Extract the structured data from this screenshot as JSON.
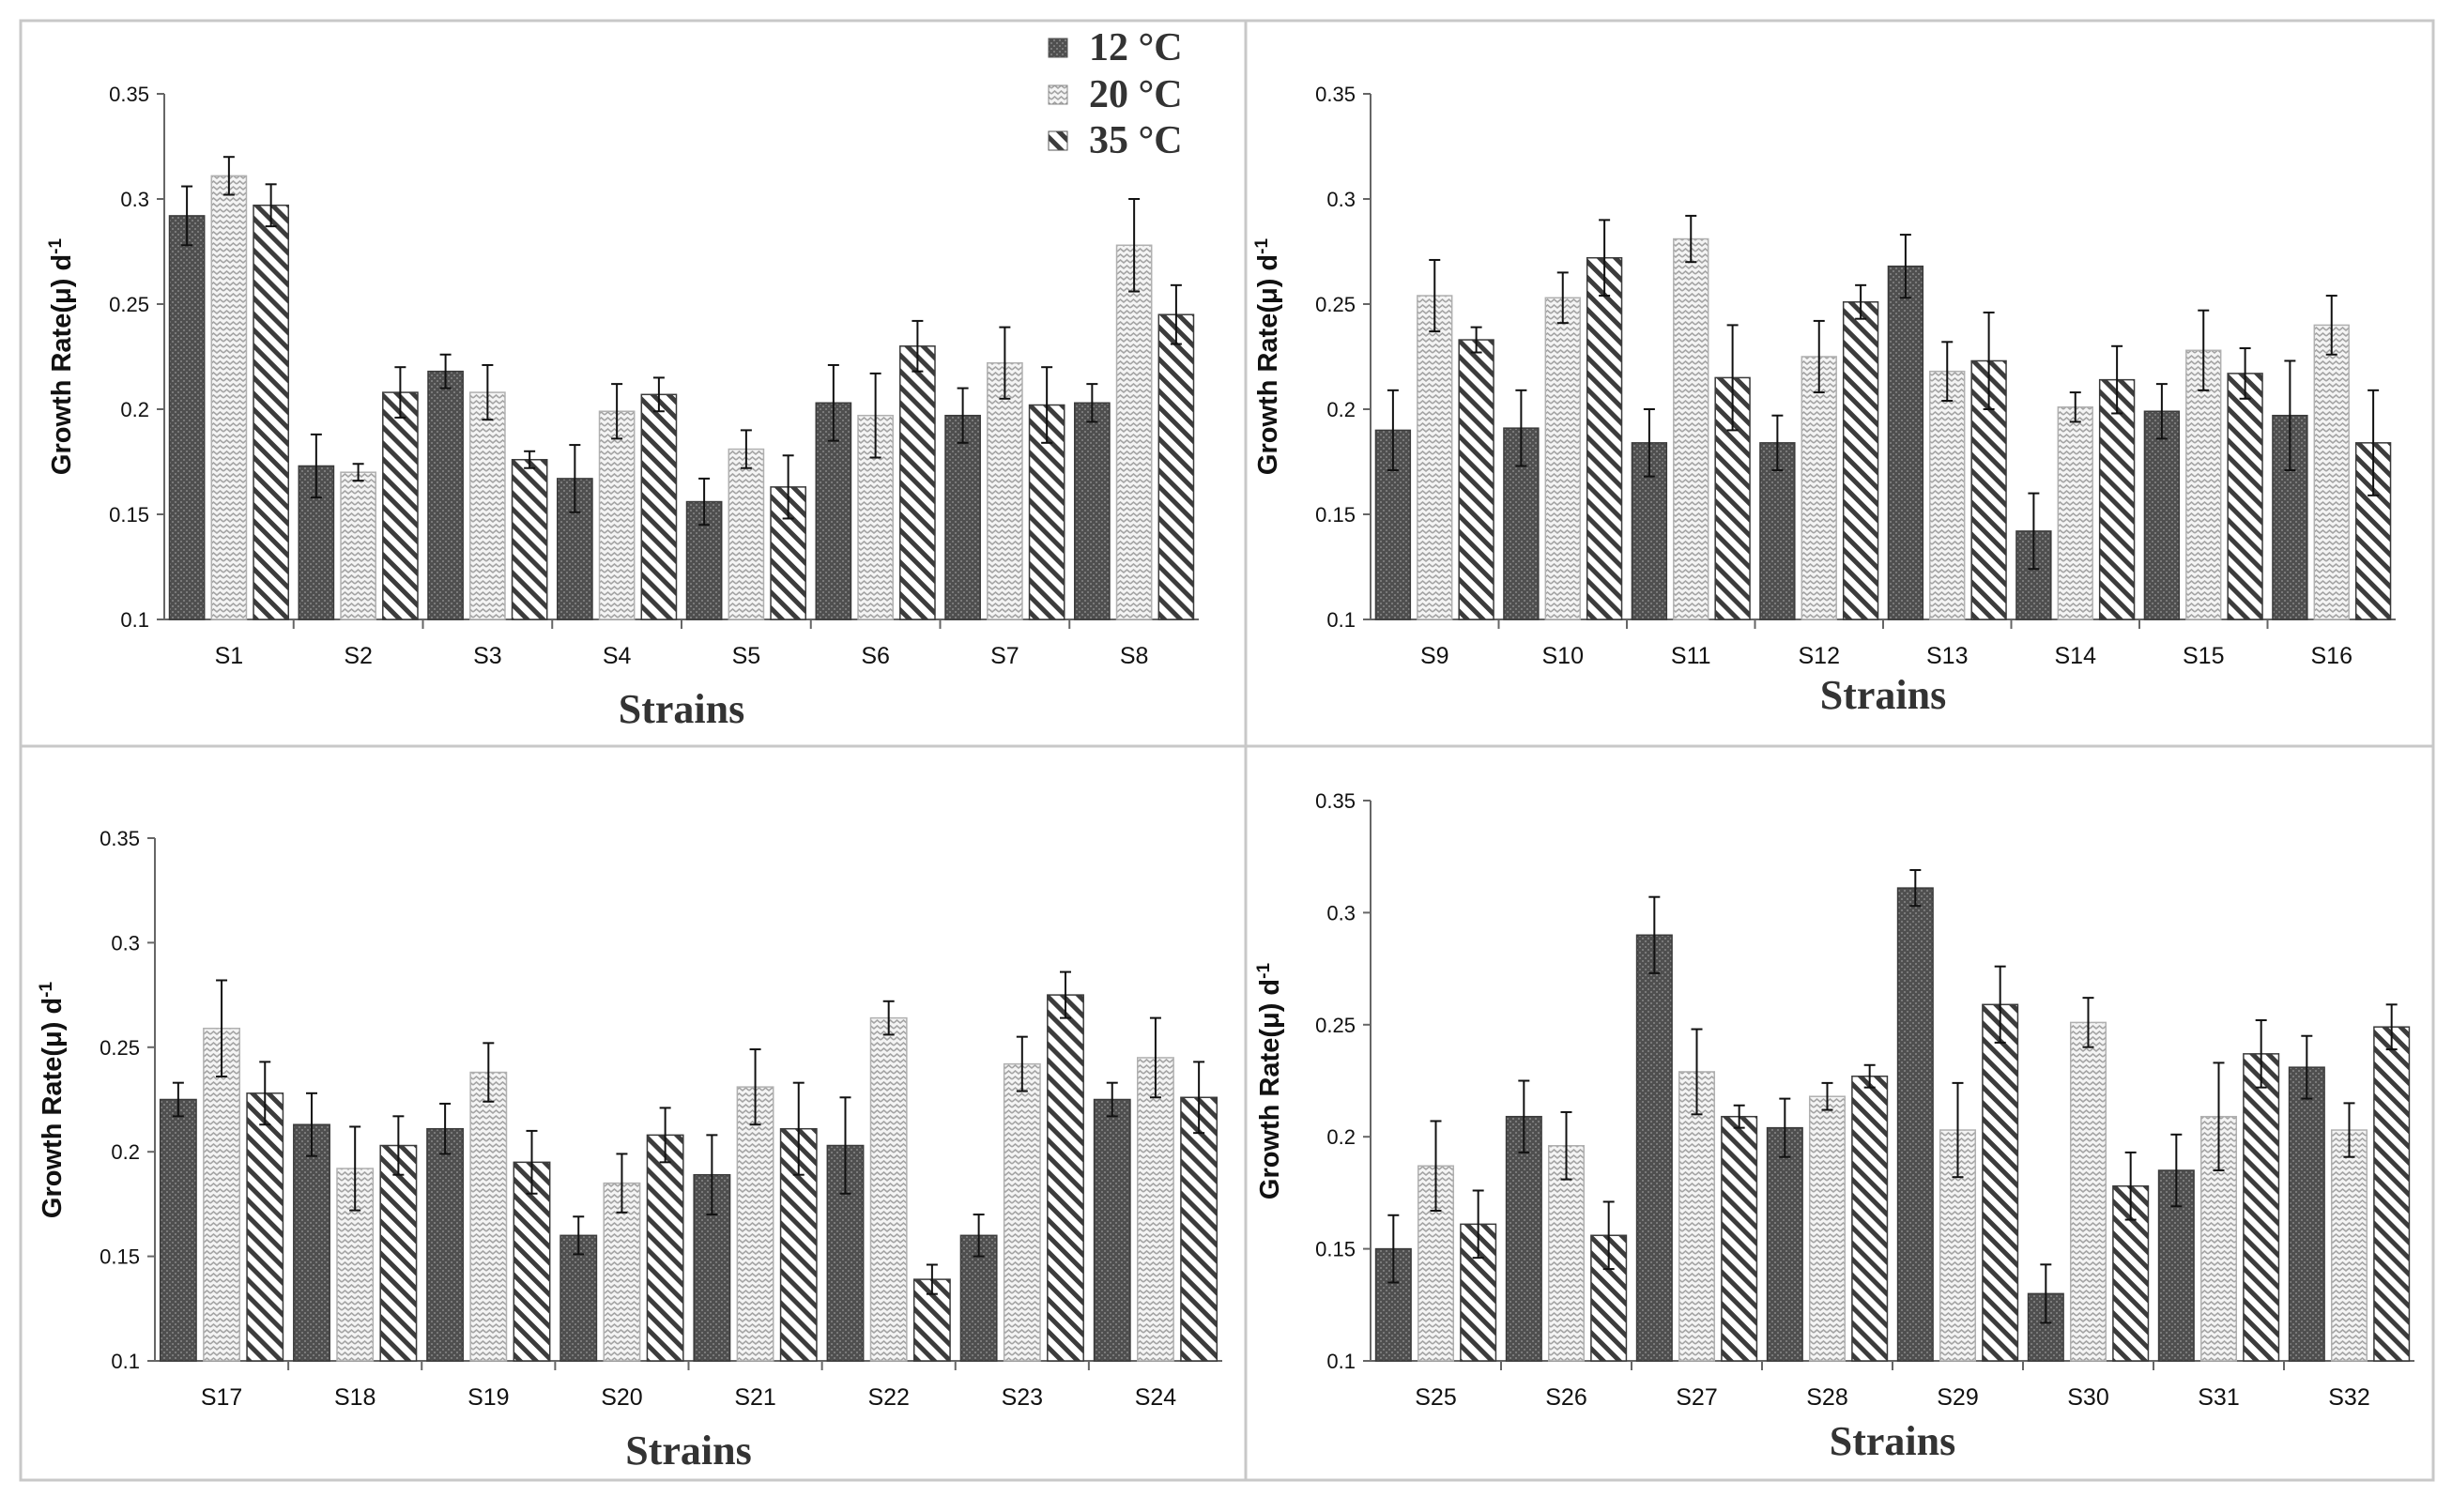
{
  "chart_data": [
    {
      "type": "bar",
      "title": "",
      "xlabel": "Strains",
      "ylabel": "Growth Rate(μ) d",
      "ylabel_sup": "-1",
      "ylim": [
        0.1,
        0.35
      ],
      "yticks": [
        "0.1",
        "0.15",
        "0.2",
        "0.25",
        "0.3",
        "0.35"
      ],
      "categories": [
        "S1",
        "S2",
        "S3",
        "S4",
        "S5",
        "S6",
        "S7",
        "S8"
      ],
      "series": [
        {
          "name": "12 °C",
          "values": [
            0.292,
            0.173,
            0.218,
            0.167,
            0.156,
            0.203,
            0.197,
            0.203
          ],
          "errors": [
            0.014,
            0.015,
            0.008,
            0.016,
            0.011,
            0.018,
            0.013,
            0.009
          ]
        },
        {
          "name": "20 °C",
          "values": [
            0.311,
            0.17,
            0.208,
            0.199,
            0.181,
            0.197,
            0.222,
            0.278
          ],
          "errors": [
            0.009,
            0.004,
            0.013,
            0.013,
            0.009,
            0.02,
            0.017,
            0.022
          ]
        },
        {
          "name": "35 °C",
          "values": [
            0.297,
            0.208,
            0.176,
            0.207,
            0.163,
            0.23,
            0.202,
            0.245
          ],
          "errors": [
            0.01,
            0.012,
            0.004,
            0.008,
            0.015,
            0.012,
            0.018,
            0.014
          ]
        }
      ]
    },
    {
      "type": "bar",
      "title": "",
      "xlabel": "Strains",
      "ylabel": "Growth Rate(μ) d",
      "ylabel_sup": "-1",
      "ylim": [
        0.1,
        0.35
      ],
      "yticks": [
        "0.1",
        "0.15",
        "0.2",
        "0.25",
        "0.3",
        "0.35"
      ],
      "categories": [
        "S9",
        "S10",
        "S11",
        "S12",
        "S13",
        "S14",
        "S15",
        "S16"
      ],
      "series": [
        {
          "name": "12 °C",
          "values": [
            0.19,
            0.191,
            0.184,
            0.184,
            0.268,
            0.142,
            0.199,
            0.197
          ],
          "errors": [
            0.019,
            0.018,
            0.016,
            0.013,
            0.015,
            0.018,
            0.013,
            0.026
          ]
        },
        {
          "name": "20 °C",
          "values": [
            0.254,
            0.253,
            0.281,
            0.225,
            0.218,
            0.201,
            0.228,
            0.24
          ],
          "errors": [
            0.017,
            0.012,
            0.011,
            0.017,
            0.014,
            0.007,
            0.019,
            0.014
          ]
        },
        {
          "name": "35 °C",
          "values": [
            0.233,
            0.272,
            0.215,
            0.251,
            0.223,
            0.214,
            0.217,
            0.184
          ],
          "errors": [
            0.006,
            0.018,
            0.025,
            0.008,
            0.023,
            0.016,
            0.012,
            0.025
          ]
        }
      ]
    },
    {
      "type": "bar",
      "title": "",
      "xlabel": "Strains",
      "ylabel": "Growth Rate(μ) d",
      "ylabel_sup": "-1",
      "ylim": [
        0.1,
        0.35
      ],
      "yticks": [
        "0.1",
        "0.15",
        "0.2",
        "0.25",
        "0.3",
        "0.35"
      ],
      "categories": [
        "S17",
        "S18",
        "S19",
        "S20",
        "S21",
        "S22",
        "S23",
        "S24"
      ],
      "series": [
        {
          "name": "12 °C",
          "values": [
            0.225,
            0.213,
            0.211,
            0.16,
            0.189,
            0.203,
            0.16,
            0.225
          ],
          "errors": [
            0.008,
            0.015,
            0.012,
            0.009,
            0.019,
            0.023,
            0.01,
            0.008
          ]
        },
        {
          "name": "20 °C",
          "values": [
            0.259,
            0.192,
            0.238,
            0.185,
            0.231,
            0.264,
            0.242,
            0.245
          ],
          "errors": [
            0.023,
            0.02,
            0.014,
            0.014,
            0.018,
            0.008,
            0.013,
            0.019
          ]
        },
        {
          "name": "35 °C",
          "values": [
            0.228,
            0.203,
            0.195,
            0.208,
            0.211,
            0.139,
            0.275,
            0.226
          ],
          "errors": [
            0.015,
            0.014,
            0.015,
            0.013,
            0.022,
            0.007,
            0.011,
            0.017
          ]
        }
      ]
    },
    {
      "type": "bar",
      "title": "",
      "xlabel": "Strains",
      "ylabel": "Growth Rate(μ) d",
      "ylabel_sup": "-1",
      "ylim": [
        0.1,
        0.35
      ],
      "yticks": [
        "0.1",
        "0.15",
        "0.2",
        "0.25",
        "0.3",
        "0.35"
      ],
      "categories": [
        "S25",
        "S26",
        "S27",
        "S28",
        "S29",
        "S30",
        "S31",
        "S32"
      ],
      "series": [
        {
          "name": "12 °C",
          "values": [
            0.15,
            0.209,
            0.29,
            0.204,
            0.311,
            0.13,
            0.185,
            0.231
          ],
          "errors": [
            0.015,
            0.016,
            0.017,
            0.013,
            0.008,
            0.013,
            0.016,
            0.014
          ]
        },
        {
          "name": "20 °C",
          "values": [
            0.187,
            0.196,
            0.229,
            0.218,
            0.203,
            0.251,
            0.209,
            0.203
          ],
          "errors": [
            0.02,
            0.015,
            0.019,
            0.006,
            0.021,
            0.011,
            0.024,
            0.012
          ]
        },
        {
          "name": "35 °C",
          "values": [
            0.161,
            0.156,
            0.209,
            0.227,
            0.259,
            0.178,
            0.237,
            0.249
          ],
          "errors": [
            0.015,
            0.015,
            0.005,
            0.005,
            0.017,
            0.015,
            0.015,
            0.01
          ]
        }
      ]
    }
  ],
  "legend": {
    "items": [
      "12 °C",
      "20 °C",
      "35 °C"
    ],
    "placement": "top-right of first panel"
  },
  "colors": {
    "series_12": "#575757",
    "series_20": "#9a9a9a",
    "series_35": "#3f3f3f",
    "axis": "#666666",
    "panel_border": "#c8c8c8"
  }
}
